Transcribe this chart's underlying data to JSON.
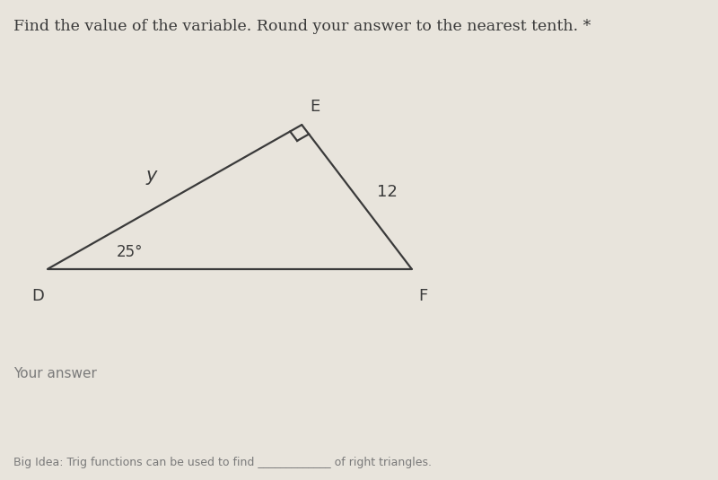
{
  "title": "Find the value of the variable. Round your answer to the nearest tenth. *",
  "title_fontsize": 12.5,
  "background_color": "#e8e4dc",
  "vertex_D": [
    0.07,
    0.44
  ],
  "vertex_F": [
    0.6,
    0.44
  ],
  "vertex_E": [
    0.44,
    0.74
  ],
  "label_D": "D",
  "label_F": "F",
  "label_E": "E",
  "label_y": "y",
  "label_12": "12",
  "label_angle": "25°",
  "footer_left": "Your answer",
  "footer_bottom": "Big Idea: Trig functions can be used to find _____________ of right triangles.",
  "line_color": "#3a3a3a",
  "text_color": "#3a3a3a",
  "footer_color": "#7a7a7a",
  "sq_size": 0.022
}
